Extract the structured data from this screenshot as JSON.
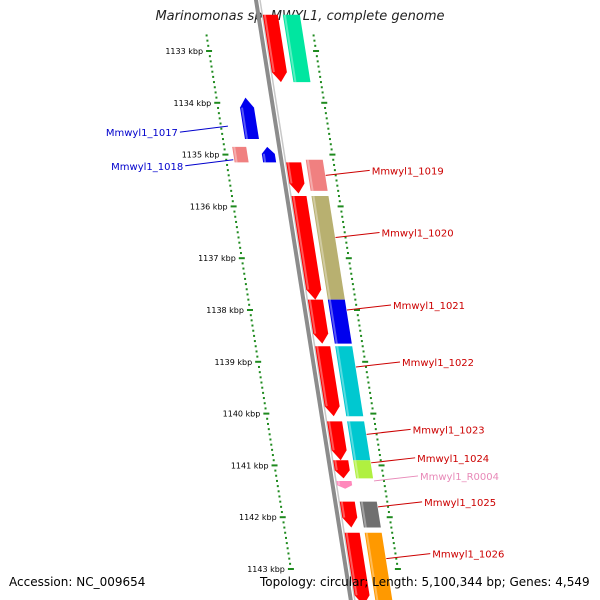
{
  "title": "Marinomonas sp. MWYL1, complete genome",
  "footer": {
    "accession": "Accession: NC_009654",
    "summary": "Topology: circular; Length: 5,100,344 bp; Genes: 4,549"
  },
  "scale": {
    "start_kbp": 1133,
    "end_kbp": 1143,
    "tick_labels": [
      "1133 kbp",
      "1134 kbp",
      "1135 kbp",
      "1136 kbp",
      "1137 kbp",
      "1138 kbp",
      "1139 kbp",
      "1140 kbp",
      "1141 kbp",
      "1142 kbp",
      "1143 kbp"
    ]
  },
  "colors": {
    "backbone": "#8c8c8c",
    "tick": "#1e8a1e",
    "label_blue": "#0000cc",
    "label_red": "#cc0000",
    "label_pink": "#e889b8"
  },
  "features": [
    {
      "lane": 1,
      "start_kbp": 1132.3,
      "end_kbp": 1133.6,
      "color": "#ff0000",
      "strand": "+"
    },
    {
      "lane": 2,
      "start_kbp": 1132.3,
      "end_kbp": 1133.6,
      "color": "#00e6a0",
      "strand": "none"
    },
    {
      "lane": -2,
      "start_kbp": 1133.9,
      "end_kbp": 1134.7,
      "color": "#0000ee",
      "strand": "-"
    },
    {
      "lane": -1,
      "start_kbp": 1134.85,
      "end_kbp": 1135.15,
      "color": "#0000ee",
      "strand": "-"
    },
    {
      "lane": -3,
      "start_kbp": 1134.85,
      "end_kbp": 1135.15,
      "color": "#f08080",
      "strand": "none"
    },
    {
      "lane": 1,
      "start_kbp": 1135.15,
      "end_kbp": 1135.75,
      "color": "#ff0000",
      "strand": "+"
    },
    {
      "lane": 2,
      "start_kbp": 1135.1,
      "end_kbp": 1135.7,
      "color": "#f08080",
      "strand": "none"
    },
    {
      "lane": 1,
      "start_kbp": 1135.8,
      "end_kbp": 1137.8,
      "color": "#ff0000",
      "strand": "+"
    },
    {
      "lane": 2,
      "start_kbp": 1135.8,
      "end_kbp": 1137.8,
      "color": "#b8b070",
      "strand": "none"
    },
    {
      "lane": 1,
      "start_kbp": 1137.8,
      "end_kbp": 1138.65,
      "color": "#ff0000",
      "strand": "+"
    },
    {
      "lane": 2,
      "start_kbp": 1137.8,
      "end_kbp": 1138.65,
      "color": "#0000ee",
      "strand": "none"
    },
    {
      "lane": 1,
      "start_kbp": 1138.7,
      "end_kbp": 1140.05,
      "color": "#ff0000",
      "strand": "+"
    },
    {
      "lane": 2,
      "start_kbp": 1138.7,
      "end_kbp": 1140.05,
      "color": "#00c8d0",
      "strand": "none"
    },
    {
      "lane": 1,
      "start_kbp": 1140.15,
      "end_kbp": 1140.9,
      "color": "#ff0000",
      "strand": "+"
    },
    {
      "lane": 2,
      "start_kbp": 1140.15,
      "end_kbp": 1140.9,
      "color": "#00c8d0",
      "strand": "none"
    },
    {
      "lane": 1,
      "start_kbp": 1140.9,
      "end_kbp": 1141.25,
      "color": "#ff0000",
      "strand": "+"
    },
    {
      "lane": 2,
      "start_kbp": 1140.9,
      "end_kbp": 1141.25,
      "color": "#b0f040",
      "strand": "none"
    },
    {
      "lane": 1,
      "start_kbp": 1141.3,
      "end_kbp": 1141.45,
      "color": "#ff88bb",
      "strand": "+"
    },
    {
      "lane": 1,
      "start_kbp": 1141.7,
      "end_kbp": 1142.2,
      "color": "#ff0000",
      "strand": "+"
    },
    {
      "lane": 2,
      "start_kbp": 1141.7,
      "end_kbp": 1142.2,
      "color": "#707070",
      "strand": "none"
    },
    {
      "lane": 1,
      "start_kbp": 1142.3,
      "end_kbp": 1143.7,
      "color": "#ff0000",
      "strand": "+"
    },
    {
      "lane": 2,
      "start_kbp": 1142.3,
      "end_kbp": 1143.7,
      "color": "#ff9900",
      "strand": "none"
    }
  ],
  "gene_labels": [
    {
      "text": "Mmwyl1_1017",
      "side": "left",
      "kbp": 1134.45,
      "color": "#0000cc"
    },
    {
      "text": "Mmwyl1_1018",
      "side": "left",
      "kbp": 1135.1,
      "color": "#0000cc"
    },
    {
      "text": "Mmwyl1_1019",
      "side": "right",
      "kbp": 1135.4,
      "color": "#cc0000"
    },
    {
      "text": "Mmwyl1_1020",
      "side": "right",
      "kbp": 1136.6,
      "color": "#cc0000"
    },
    {
      "text": "Mmwyl1_1021",
      "side": "right",
      "kbp": 1138.0,
      "color": "#cc0000"
    },
    {
      "text": "Mmwyl1_1022",
      "side": "right",
      "kbp": 1139.1,
      "color": "#cc0000"
    },
    {
      "text": "Mmwyl1_1023",
      "side": "right",
      "kbp": 1140.4,
      "color": "#cc0000"
    },
    {
      "text": "Mmwyl1_1024",
      "side": "right",
      "kbp": 1140.95,
      "color": "#cc0000"
    },
    {
      "text": "Mmwyl1_R0004",
      "side": "right",
      "kbp": 1141.3,
      "color": "#e889b8"
    },
    {
      "text": "Mmwyl1_1025",
      "side": "right",
      "kbp": 1141.8,
      "color": "#cc0000"
    },
    {
      "text": "Mmwyl1_1026",
      "side": "right",
      "kbp": 1142.8,
      "color": "#cc0000"
    }
  ]
}
